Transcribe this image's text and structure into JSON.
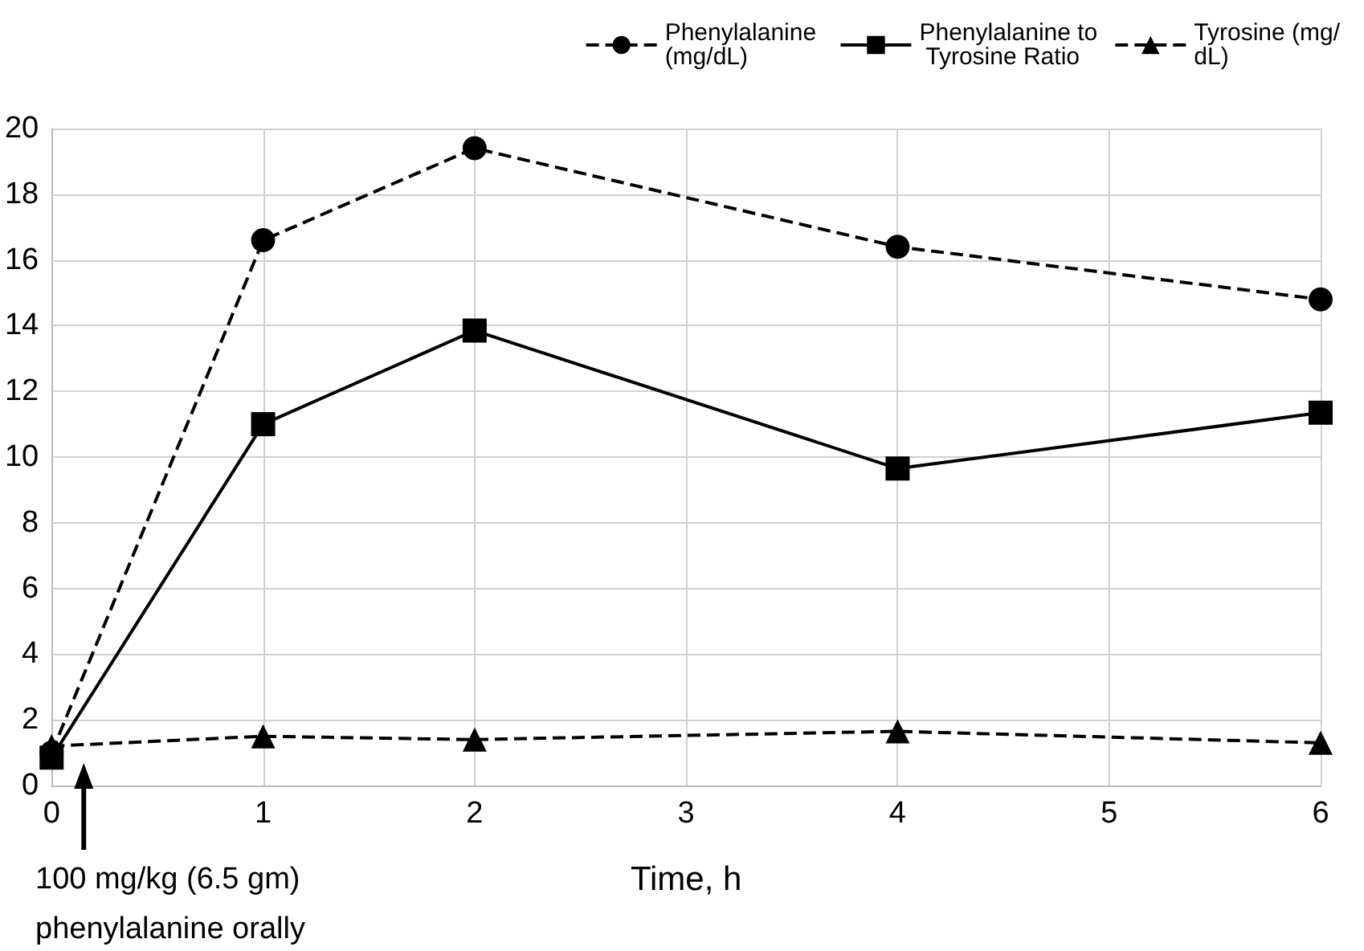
{
  "chart_data": {
    "type": "line",
    "xlabel": "Time, h",
    "x": [
      0,
      1,
      2,
      4,
      6
    ],
    "series": [
      {
        "name": "Phenylalanine (mg/dL)",
        "color": "#000000",
        "marker": "circle",
        "line_style": "dashed",
        "values": [
          1.0,
          16.6,
          19.4,
          16.4,
          14.8
        ]
      },
      {
        "name": "Phenylalanine to Tyrosine Ratio",
        "color": "#000000",
        "marker": "square",
        "line_style": "solid",
        "values": [
          0.85,
          11.0,
          13.85,
          9.65,
          11.35
        ]
      },
      {
        "name": "Tyrosine (mg/dL)",
        "color": "#000000",
        "marker": "triangle",
        "line_style": "dashed",
        "values": [
          1.2,
          1.5,
          1.4,
          1.65,
          1.3
        ]
      }
    ],
    "xlim": [
      0,
      6
    ],
    "xticks": [
      0,
      1,
      2,
      3,
      4,
      5,
      6
    ],
    "ylim": [
      0,
      20
    ],
    "yticks": [
      0,
      2,
      4,
      6,
      8,
      10,
      12,
      14,
      16,
      18,
      20
    ],
    "grid": true,
    "legend": "top right",
    "annotations": [
      "100 mg/kg (6.5 gm) phenylalanine orally"
    ]
  }
}
